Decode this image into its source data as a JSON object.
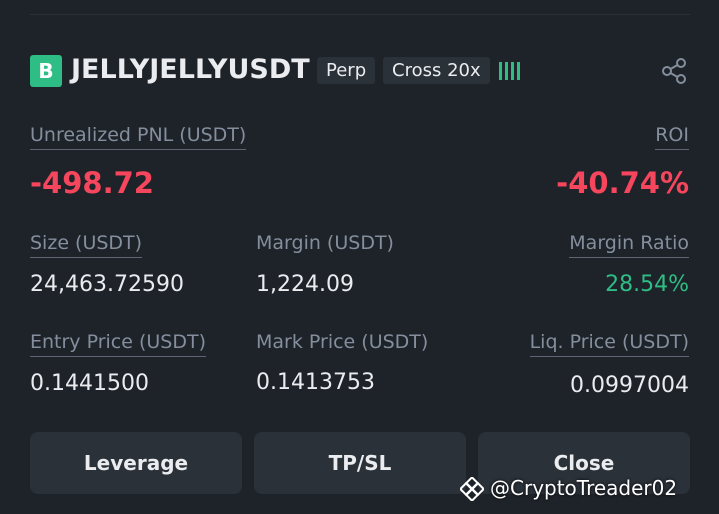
{
  "header": {
    "badge": "B",
    "symbol": "JELLYJELLYUSDT",
    "tags": [
      "Perp",
      "Cross 20x"
    ]
  },
  "pnl": {
    "label": "Unrealized PNL (USDT)",
    "value": "-498.72"
  },
  "roi": {
    "label": "ROI",
    "value": "-40.74%"
  },
  "fields": [
    {
      "label": "Size (USDT)",
      "value": "24,463.72590"
    },
    {
      "label": "Margin (USDT)",
      "value": "1,224.09"
    },
    {
      "label": "Margin Ratio",
      "value": "28.54%"
    },
    {
      "label": "Entry Price (USDT)",
      "value": "0.1441500"
    },
    {
      "label": "Mark Price (USDT)",
      "value": "0.1413753"
    },
    {
      "label": "Liq. Price (USDT)",
      "value": "0.0997004"
    }
  ],
  "buttons": [
    "Leverage",
    "TP/SL",
    "Close"
  ],
  "watermark": "@CryptoTreader02"
}
